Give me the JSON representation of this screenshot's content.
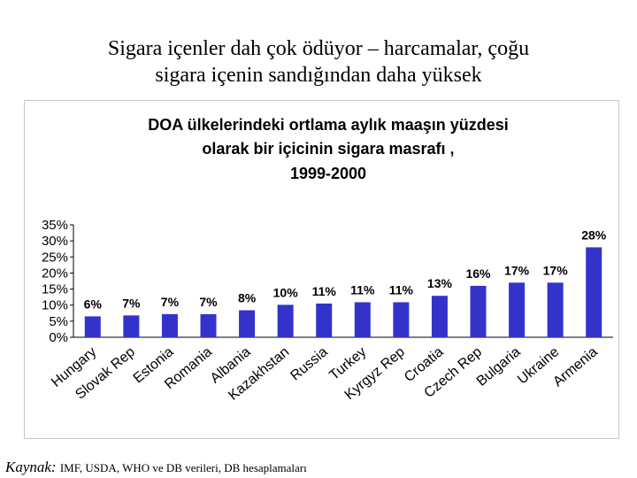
{
  "slide": {
    "title_line1": "Sigara içenler dah çok ödüyor – harcamalar, çoğu",
    "title_line2": "sigara içenin sandığından daha yüksek"
  },
  "source": {
    "label": "Kaynak:",
    "text": "IMF, USDA, WHO ve DB verileri, DB hesaplamaları"
  },
  "colors": {
    "bar": "#3333cc",
    "axis": "#000000"
  },
  "chart_data": {
    "type": "bar",
    "title_lines": [
      "DOA ülkelerindeki ortlama aylık maaşın yüzdesi",
      "olarak bir içicinin sigara masrafı ,",
      "1999-2000"
    ],
    "categories": [
      "Hungary",
      "Slovak Rep",
      "Estonia",
      "Romania",
      "Albania",
      "Kazakhstan",
      "Russia",
      "Turkey",
      "Kyrgyz Rep",
      "Croatia",
      "Czech Rep",
      "Bulgaria",
      "Ukraine",
      "Armenia"
    ],
    "values": [
      6.5,
      6.8,
      7.2,
      7.2,
      8.4,
      10.1,
      10.5,
      10.9,
      10.9,
      12.9,
      16.0,
      17.0,
      17.0,
      28.0
    ],
    "data_labels": [
      "6%",
      "7%",
      "7%",
      "7%",
      "8%",
      "10%",
      "11%",
      "11%",
      "11%",
      "13%",
      "16%",
      "17%",
      "17%",
      "28%"
    ],
    "y_ticks": [
      0,
      5,
      10,
      15,
      20,
      25,
      30,
      35
    ],
    "y_tick_labels": [
      "0%",
      "5%",
      "10%",
      "15%",
      "20%",
      "25%",
      "30%",
      "35%"
    ],
    "ylim": [
      0,
      35
    ],
    "xlabel": "",
    "ylabel": "",
    "grid": false,
    "legend": "none"
  }
}
